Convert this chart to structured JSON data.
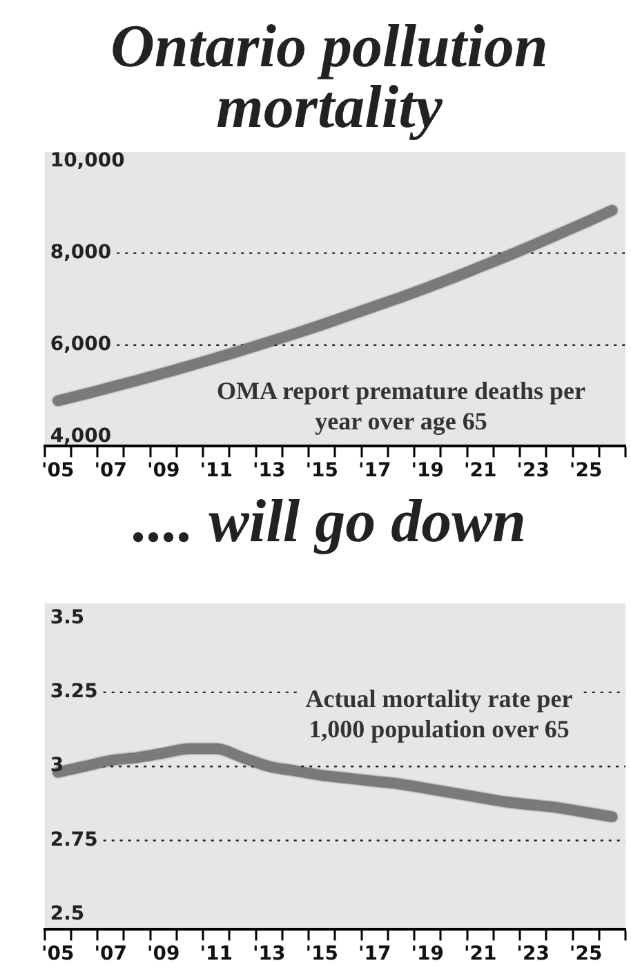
{
  "chart_data": [
    {
      "type": "line",
      "title": "Ontario pollution mortality",
      "annotations": [
        "OMA report premature deaths per year over age 65"
      ],
      "categories": [
        "'05",
        null,
        "'07",
        null,
        "'09",
        null,
        "'11",
        null,
        "'13",
        null,
        "'15",
        null,
        "'17",
        null,
        "'19",
        null,
        "'21",
        null,
        "'23",
        null,
        "'25",
        null
      ],
      "values": [
        4790,
        4930,
        5080,
        5230,
        5390,
        5550,
        5720,
        5890,
        6070,
        6250,
        6440,
        6640,
        6840,
        7040,
        7250,
        7470,
        7700,
        7930,
        8170,
        8420,
        8670,
        8930
      ],
      "color": "#7a7a7a",
      "marker": "none",
      "line_style": "solid",
      "grid": "y",
      "ylim": [
        3800,
        10200
      ],
      "yticks": [
        {
          "value": 4000,
          "label": "4,000"
        },
        {
          "value": 6000,
          "label": "6,000"
        },
        {
          "value": 8000,
          "label": "8,000"
        },
        {
          "value": 10000,
          "label": "10,000"
        }
      ]
    },
    {
      "type": "line",
      "title": ".... will go down",
      "annotations": [
        "Actual mortality rate per 1,000 population over 65"
      ],
      "categories": [
        "'05",
        null,
        "'07",
        null,
        "'09",
        null,
        "'11",
        null,
        "'13",
        null,
        "'15",
        null,
        "'17",
        null,
        "'19",
        null,
        "'21",
        null,
        "'23",
        null,
        "'25",
        null
      ],
      "values": [
        2.98,
        3.0,
        3.02,
        3.03,
        3.045,
        3.06,
        3.06,
        3.03,
        3.0,
        2.985,
        2.97,
        2.96,
        2.95,
        2.94,
        2.925,
        2.91,
        2.895,
        2.88,
        2.87,
        2.86,
        2.845,
        2.83
      ],
      "color": "#7a7a7a",
      "marker": "none",
      "line_style": "solid",
      "grid": "y",
      "ylim": [
        2.45,
        3.55
      ],
      "yticks": [
        2.5,
        2.75,
        3,
        3.25,
        3.5
      ]
    }
  ]
}
